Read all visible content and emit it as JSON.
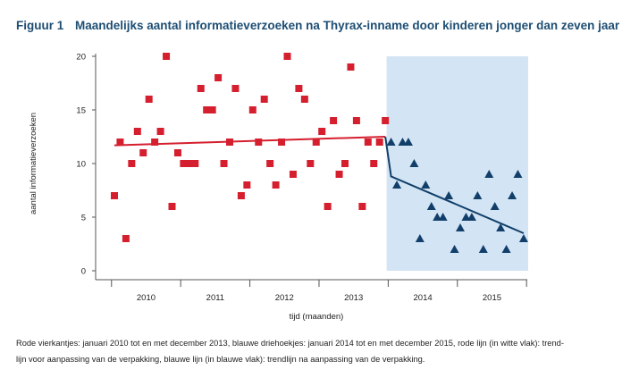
{
  "figure": {
    "label": "Figuur 1",
    "title": "Maandelijks aantal informatieverzoeken na Thyrax-inname door kinderen jonger dan zeven jaar",
    "caption_line1": "Rode vierkantjes: januari 2010 tot en met december 2013, blauwe driehoekjes: januari 2014 tot en met december 2015, rode lijn (in witte vlak): trend-",
    "caption_line2": "lijn voor aanpassing van de verpakking, blauwe lijn (in blauwe vlak): trendlijn na aanpassing van de verpakking."
  },
  "colors": {
    "title": "#1d4e74",
    "red": "#d51f2e",
    "blue": "#123f6a",
    "shade": "#d3e5f4",
    "axis": "#555555"
  },
  "chart_data": {
    "type": "scatter",
    "title": "Maandelijks aantal informatieverzoeken na Thyrax-inname door kinderen jonger dan zeven jaar",
    "xlabel": "tijd (maanden)",
    "ylabel": "aantal informatieverzoeken",
    "ylim": [
      0,
      20
    ],
    "yticks": [
      0,
      5,
      10,
      15,
      20
    ],
    "year_labels": [
      "2010",
      "2011",
      "2012",
      "2013",
      "2014",
      "2015"
    ],
    "grid": false,
    "shaded_period": {
      "from": "2014-01",
      "to": "2015-12"
    },
    "series": [
      {
        "marker": "square",
        "color": "#d51f2e",
        "x": [
          "2010-01",
          "2010-02",
          "2010-03",
          "2010-04",
          "2010-05",
          "2010-06",
          "2010-07",
          "2010-08",
          "2010-09",
          "2010-10",
          "2010-11",
          "2010-12",
          "2011-01",
          "2011-02",
          "2011-03",
          "2011-04",
          "2011-05",
          "2011-06",
          "2011-07",
          "2011-08",
          "2011-09",
          "2011-10",
          "2011-11",
          "2011-12",
          "2012-01",
          "2012-02",
          "2012-03",
          "2012-04",
          "2012-05",
          "2012-06",
          "2012-07",
          "2012-08",
          "2012-09",
          "2012-10",
          "2012-11",
          "2012-12",
          "2013-01",
          "2013-02",
          "2013-03",
          "2013-04",
          "2013-05",
          "2013-06",
          "2013-07",
          "2013-08",
          "2013-09",
          "2013-10",
          "2013-11",
          "2013-12"
        ],
        "values": [
          7,
          12,
          3,
          10,
          13,
          11,
          16,
          12,
          13,
          20,
          6,
          11,
          10,
          10,
          10,
          17,
          15,
          15,
          18,
          10,
          12,
          17,
          7,
          8,
          15,
          12,
          16,
          10,
          8,
          12,
          20,
          9,
          17,
          16,
          10,
          12,
          13,
          6,
          14,
          9,
          10,
          19,
          14,
          6,
          12,
          10,
          12,
          14
        ]
      },
      {
        "marker": "triangle",
        "color": "#123f6a",
        "x": [
          "2014-01",
          "2014-02",
          "2014-03",
          "2014-04",
          "2014-05",
          "2014-06",
          "2014-07",
          "2014-08",
          "2014-09",
          "2014-10",
          "2014-11",
          "2014-12",
          "2015-01",
          "2015-02",
          "2015-03",
          "2015-04",
          "2015-05",
          "2015-06",
          "2015-07",
          "2015-08",
          "2015-09",
          "2015-10",
          "2015-11",
          "2015-12"
        ],
        "values": [
          12,
          8,
          12,
          12,
          10,
          3,
          8,
          6,
          5,
          5,
          7,
          2,
          4,
          5,
          5,
          7,
          2,
          9,
          6,
          4,
          2,
          7,
          9,
          3
        ]
      }
    ],
    "trendlines": [
      {
        "color": "#d51f2e",
        "from": {
          "x": "2010-01",
          "y": 11.7
        },
        "to": {
          "x": "2013-12",
          "y": 12.5
        }
      },
      {
        "color": "#123f6a",
        "from": {
          "x": "2013-12",
          "y": 12.5
        },
        "via": {
          "x": "2014-01",
          "y": 8.8
        },
        "to": {
          "x": "2015-12",
          "y": 3.5
        }
      }
    ]
  }
}
